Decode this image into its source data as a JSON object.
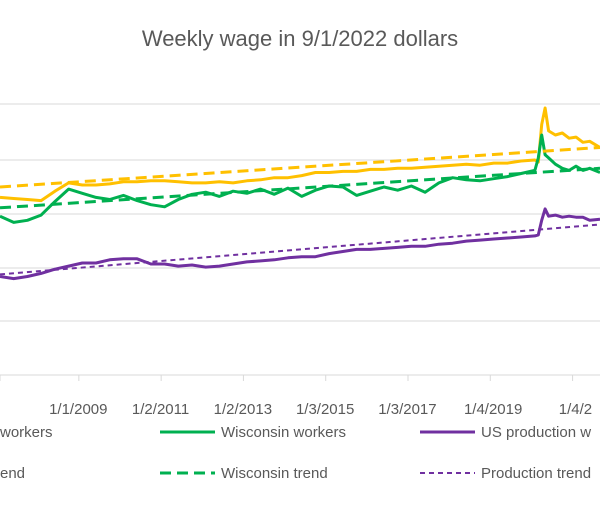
{
  "chart_data": {
    "type": "line",
    "title": "Weekly wage in 9/1/2022 dollars",
    "xlabel": "",
    "ylabel": "",
    "x_tick_labels": [
      "1/1/2009",
      "1/2/2011",
      "1/2/2013",
      "1/3/2015",
      "1/3/2017",
      "1/4/2019",
      "1/4/2"
    ],
    "x_range": [
      "2007-02-01",
      "2021-09-01"
    ],
    "grid": true,
    "legend_placement": "bottom",
    "series": [
      {
        "name": "workers",
        "color": "#FFC000",
        "style": "solid",
        "x": [
          "2007-02",
          "2007-06",
          "2007-10",
          "2008-02",
          "2008-06",
          "2008-10",
          "2009-02",
          "2009-06",
          "2009-10",
          "2010-02",
          "2010-06",
          "2010-10",
          "2011-02",
          "2011-06",
          "2011-10",
          "2012-02",
          "2012-06",
          "2012-10",
          "2013-02",
          "2013-06",
          "2013-10",
          "2014-02",
          "2014-06",
          "2014-10",
          "2015-02",
          "2015-06",
          "2015-10",
          "2016-02",
          "2016-06",
          "2016-10",
          "2017-02",
          "2017-06",
          "2017-10",
          "2018-02",
          "2018-06",
          "2018-10",
          "2019-02",
          "2019-06",
          "2019-10",
          "2020-02",
          "2020-03",
          "2020-04",
          "2020-05",
          "2020-06",
          "2020-08",
          "2020-10",
          "2020-12",
          "2021-02",
          "2021-04",
          "2021-06",
          "2021-09"
        ],
        "values": [
          0.14,
          0.13,
          0.12,
          0.11,
          0.2,
          0.28,
          0.26,
          0.26,
          0.27,
          0.29,
          0.29,
          0.3,
          0.3,
          0.29,
          0.28,
          0.28,
          0.29,
          0.28,
          0.3,
          0.31,
          0.33,
          0.33,
          0.35,
          0.38,
          0.38,
          0.39,
          0.39,
          0.41,
          0.41,
          0.42,
          0.42,
          0.43,
          0.44,
          0.45,
          0.46,
          0.45,
          0.47,
          0.47,
          0.49,
          0.5,
          0.48,
          0.84,
          1.0,
          0.78,
          0.74,
          0.76,
          0.71,
          0.72,
          0.67,
          0.68,
          0.62
        ]
      },
      {
        "name": "Wisconsin workers",
        "color": "#00B050",
        "style": "solid",
        "x": [
          "2007-02",
          "2007-06",
          "2007-10",
          "2008-02",
          "2008-06",
          "2008-10",
          "2009-02",
          "2009-06",
          "2009-10",
          "2010-02",
          "2010-06",
          "2010-10",
          "2011-02",
          "2011-06",
          "2011-10",
          "2012-02",
          "2012-06",
          "2012-10",
          "2013-02",
          "2013-06",
          "2013-10",
          "2014-02",
          "2014-06",
          "2014-10",
          "2015-02",
          "2015-06",
          "2015-10",
          "2016-02",
          "2016-06",
          "2016-10",
          "2017-02",
          "2017-06",
          "2017-10",
          "2018-02",
          "2018-06",
          "2018-10",
          "2019-02",
          "2019-06",
          "2019-10",
          "2020-02",
          "2020-03",
          "2020-04",
          "2020-05",
          "2020-06",
          "2020-08",
          "2020-10",
          "2020-12",
          "2021-02",
          "2021-04",
          "2021-06",
          "2021-09"
        ],
        "values": [
          -0.04,
          -0.1,
          -0.08,
          -0.03,
          0.1,
          0.22,
          0.18,
          0.14,
          0.12,
          0.16,
          0.11,
          0.07,
          0.05,
          0.12,
          0.17,
          0.19,
          0.15,
          0.2,
          0.18,
          0.22,
          0.17,
          0.23,
          0.15,
          0.21,
          0.25,
          0.24,
          0.16,
          0.2,
          0.24,
          0.21,
          0.25,
          0.19,
          0.28,
          0.33,
          0.31,
          0.3,
          0.32,
          0.34,
          0.37,
          0.4,
          0.52,
          0.74,
          0.55,
          0.52,
          0.46,
          0.42,
          0.4,
          0.44,
          0.4,
          0.42,
          0.38
        ]
      },
      {
        "name": "US production w",
        "color": "#7030A0",
        "style": "solid",
        "x": [
          "2007-02",
          "2007-06",
          "2007-10",
          "2008-02",
          "2008-06",
          "2008-10",
          "2009-02",
          "2009-06",
          "2009-10",
          "2010-02",
          "2010-06",
          "2010-10",
          "2011-02",
          "2011-06",
          "2011-10",
          "2012-02",
          "2012-06",
          "2012-10",
          "2013-02",
          "2013-06",
          "2013-10",
          "2014-02",
          "2014-06",
          "2014-10",
          "2015-02",
          "2015-06",
          "2015-10",
          "2016-02",
          "2016-06",
          "2016-10",
          "2017-02",
          "2017-06",
          "2017-10",
          "2018-02",
          "2018-06",
          "2018-10",
          "2019-02",
          "2019-06",
          "2019-10",
          "2020-02",
          "2020-03",
          "2020-04",
          "2020-05",
          "2020-06",
          "2020-08",
          "2020-10",
          "2020-12",
          "2021-02",
          "2021-04",
          "2021-06",
          "2021-09"
        ],
        "values": [
          -0.62,
          -0.64,
          -0.62,
          -0.59,
          -0.55,
          -0.52,
          -0.49,
          -0.49,
          -0.46,
          -0.45,
          -0.45,
          -0.5,
          -0.5,
          -0.52,
          -0.51,
          -0.53,
          -0.52,
          -0.5,
          -0.48,
          -0.47,
          -0.46,
          -0.44,
          -0.43,
          -0.43,
          -0.4,
          -0.38,
          -0.36,
          -0.36,
          -0.35,
          -0.34,
          -0.33,
          -0.33,
          -0.31,
          -0.3,
          -0.28,
          -0.27,
          -0.26,
          -0.25,
          -0.24,
          -0.23,
          -0.22,
          -0.08,
          0.03,
          -0.04,
          -0.03,
          -0.05,
          -0.04,
          -0.05,
          -0.05,
          -0.08,
          -0.07
        ]
      },
      {
        "name": "end",
        "color": "#FFC000",
        "style": "dashed",
        "x": [
          "2007-02",
          "2021-09"
        ],
        "values": [
          0.24,
          0.62
        ]
      },
      {
        "name": "Wisconsin trend",
        "color": "#00B050",
        "style": "dashed",
        "x": [
          "2007-02",
          "2021-09"
        ],
        "values": [
          0.04,
          0.42
        ]
      },
      {
        "name": "Production trend",
        "color": "#7030A0",
        "style": "dotted",
        "x": [
          "2007-02",
          "2021-09"
        ],
        "values": [
          -0.6,
          -0.12
        ]
      }
    ]
  },
  "legend": {
    "items": [
      {
        "label": "workers",
        "color": "#FFC000",
        "style": "solid"
      },
      {
        "label": "Wisconsin workers",
        "color": "#00B050",
        "style": "solid"
      },
      {
        "label": "US production w",
        "color": "#7030A0",
        "style": "solid"
      },
      {
        "label": "end",
        "color": "#FFC000",
        "style": "dashed"
      },
      {
        "label": "Wisconsin trend",
        "color": "#00B050",
        "style": "dashed"
      },
      {
        "label": "Production trend",
        "color": "#7030A0",
        "style": "dotted"
      }
    ]
  }
}
